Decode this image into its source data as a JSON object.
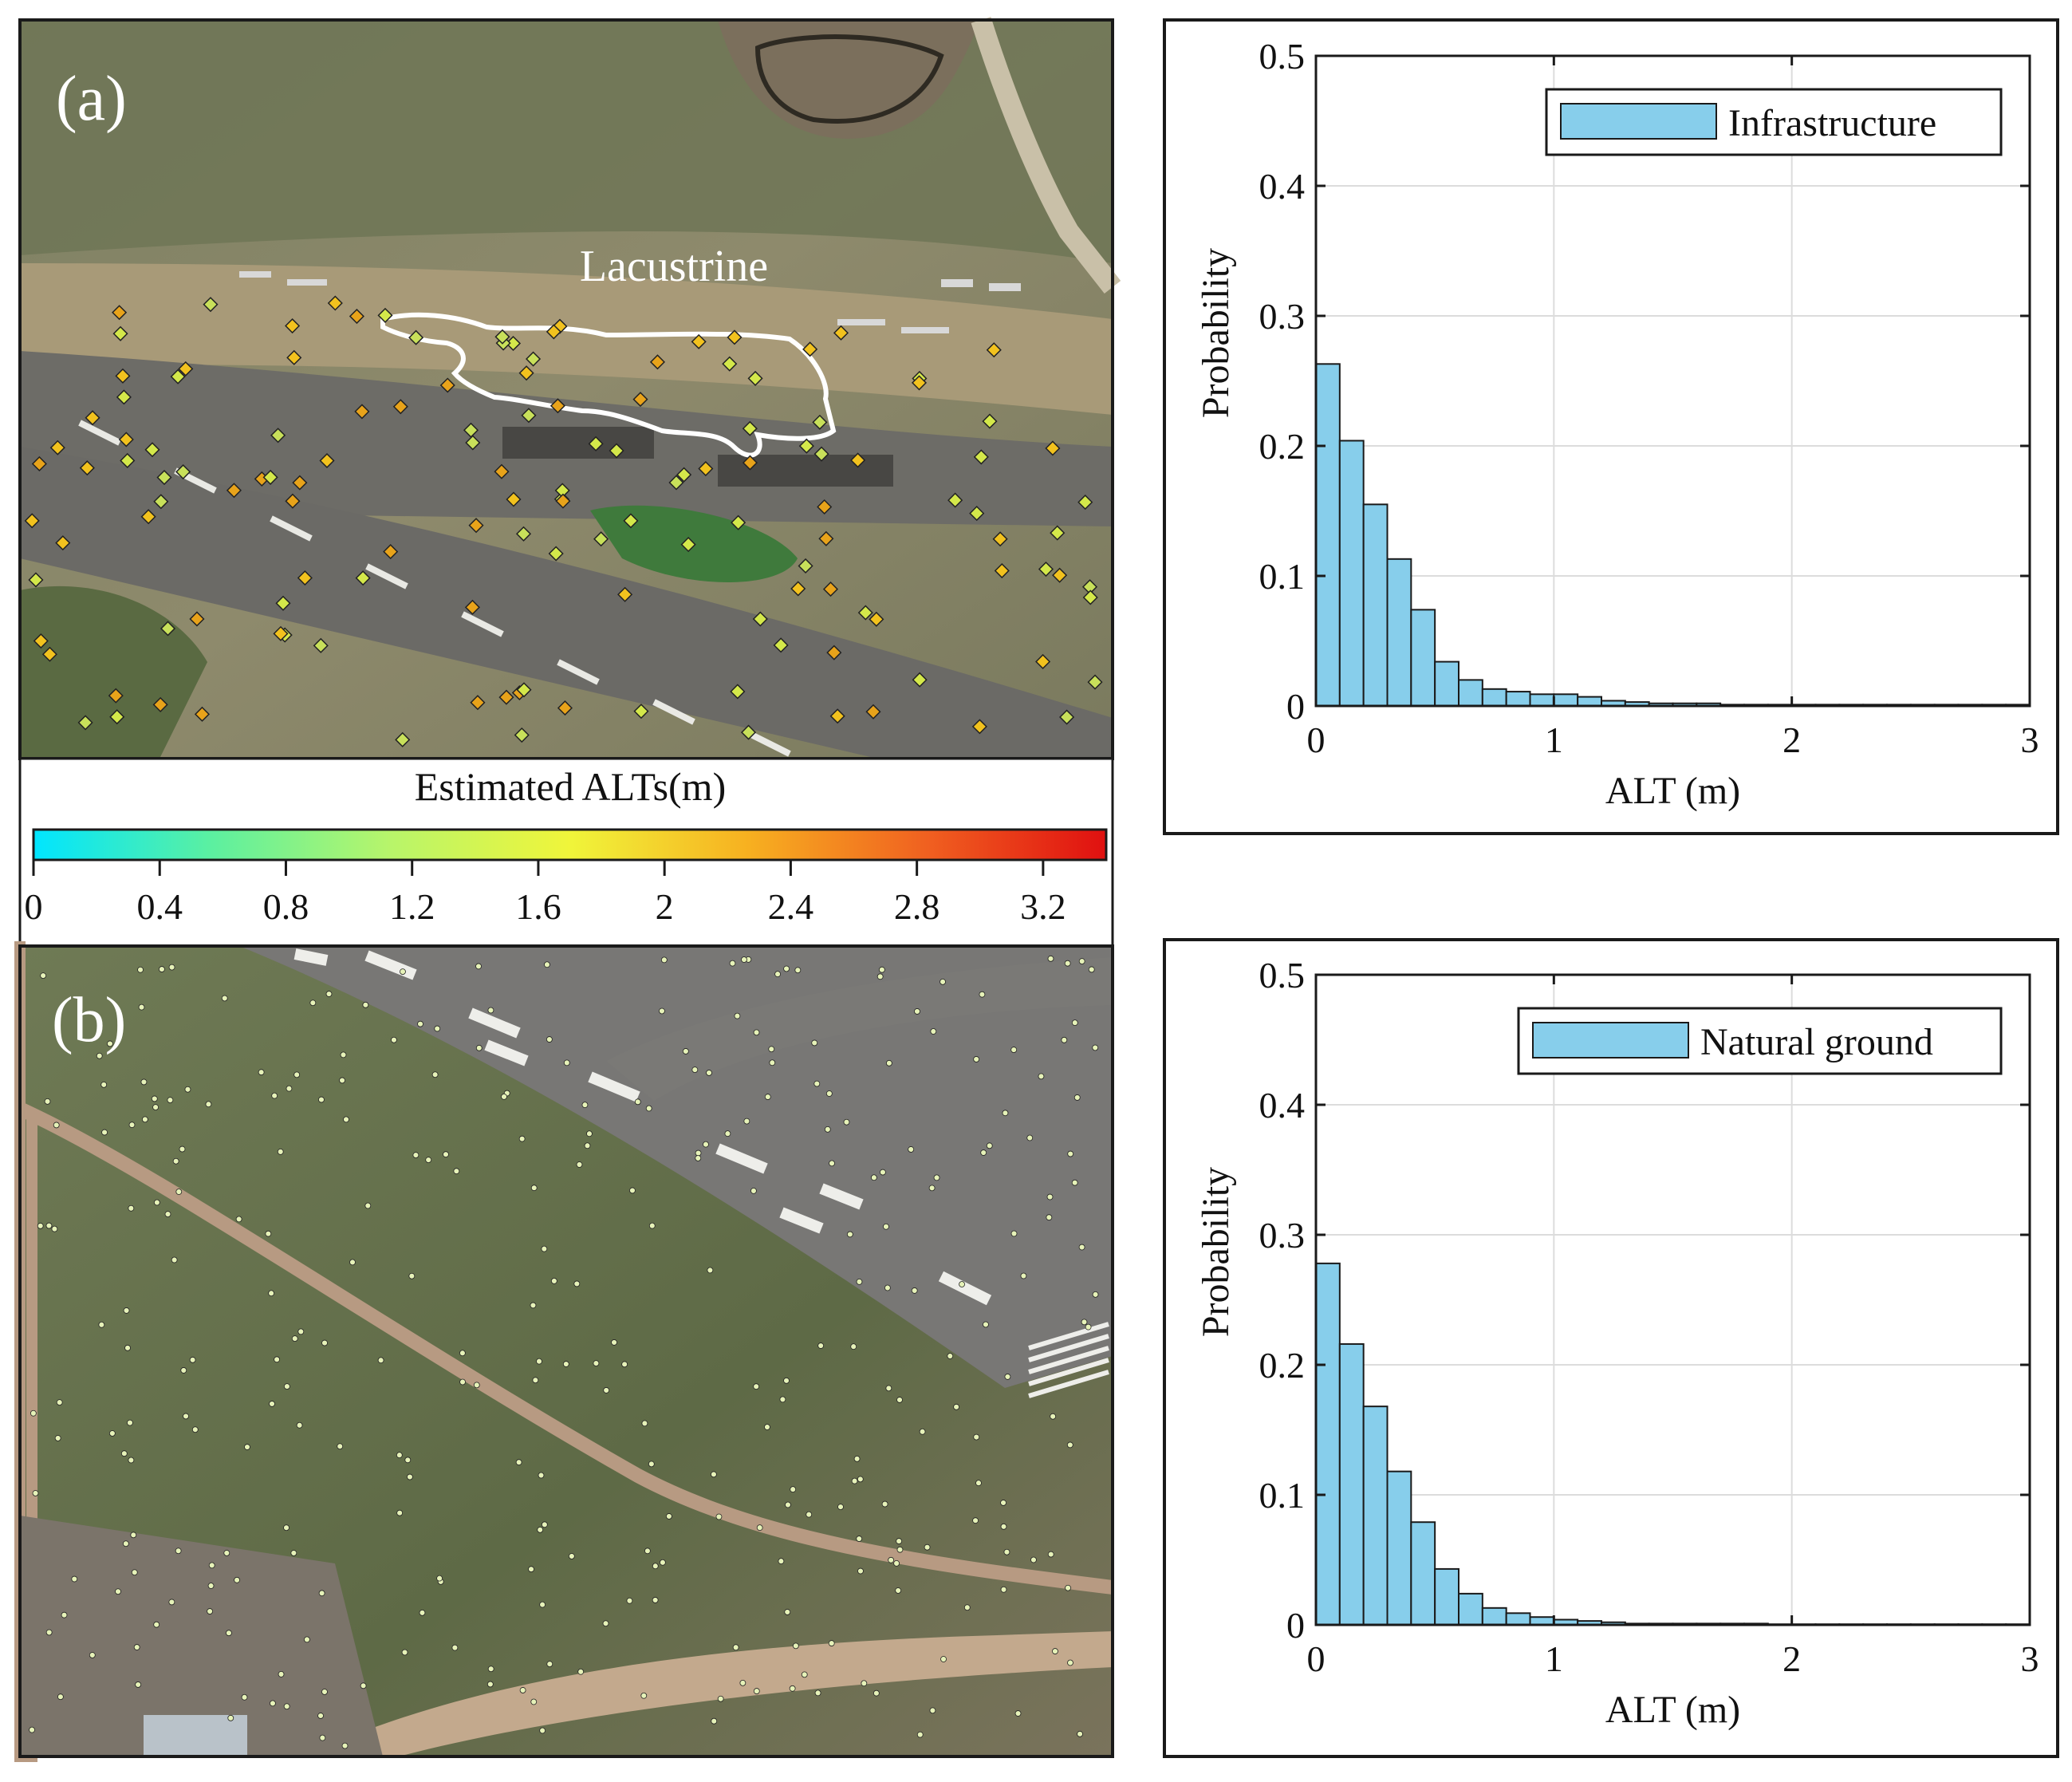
{
  "panel_a": {
    "label": "(a)",
    "annotation": "Lacustrine"
  },
  "panel_b": {
    "label": "(b)"
  },
  "colorbar": {
    "title": "Estimated ALTs(m)",
    "min": 0,
    "max": 3.4,
    "ticks": [
      "0",
      "0.4",
      "0.8",
      "1.2",
      "1.6",
      "2",
      "2.4",
      "2.8",
      "3.2"
    ],
    "colors": [
      "#00e5ff",
      "#5cf0a0",
      "#b8f56a",
      "#f0f53a",
      "#f7b020",
      "#f06020",
      "#e01010"
    ]
  },
  "colors": {
    "bar_fill": "#87ceeb",
    "bar_stroke": "#1a1a1a",
    "grid": "#dcdcdc"
  },
  "chart_data": [
    {
      "type": "bar",
      "xlabel": "ALT (m)",
      "ylabel": "Probability",
      "xlim": [
        0,
        3
      ],
      "ylim": [
        0,
        0.5
      ],
      "xticks": [
        "0",
        "1",
        "2",
        "3"
      ],
      "yticks": [
        "0",
        "0.1",
        "0.2",
        "0.3",
        "0.4",
        "0.5"
      ],
      "bin_width": 0.1,
      "grid": true,
      "legend_position": "top-right",
      "series": [
        {
          "name": "Infrastructure",
          "values": [
            0.263,
            0.204,
            0.155,
            0.113,
            0.074,
            0.034,
            0.02,
            0.013,
            0.011,
            0.009,
            0.009,
            0.007,
            0.004,
            0.003,
            0.002,
            0.002,
            0.002,
            0.001,
            0.001,
            0.001,
            0.001,
            0.001,
            0.001,
            0.001,
            0.001,
            0.001,
            0.001,
            0.001,
            0.001,
            0.001
          ]
        }
      ]
    },
    {
      "type": "bar",
      "xlabel": "ALT (m)",
      "ylabel": "Probability",
      "xlim": [
        0,
        3
      ],
      "ylim": [
        0,
        0.5
      ],
      "xticks": [
        "0",
        "1",
        "2",
        "3"
      ],
      "yticks": [
        "0",
        "0.1",
        "0.2",
        "0.3",
        "0.4",
        "0.5"
      ],
      "bin_width": 0.1,
      "grid": true,
      "legend_position": "top-right",
      "series": [
        {
          "name": "Natural ground",
          "values": [
            0.278,
            0.216,
            0.168,
            0.118,
            0.079,
            0.043,
            0.024,
            0.013,
            0.009,
            0.006,
            0.004,
            0.003,
            0.002,
            0.001,
            0.001,
            0.001,
            0.001,
            0.001,
            0.001,
            0.0005,
            0.0005,
            0.0005,
            0.0005,
            0.0005,
            0.0005,
            0.0005,
            0.0005,
            0.0005,
            0.0005,
            0.0005
          ]
        }
      ]
    }
  ]
}
